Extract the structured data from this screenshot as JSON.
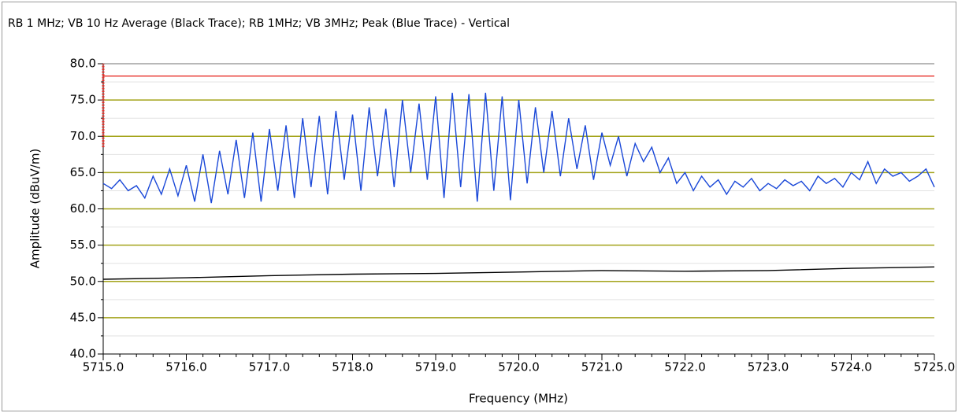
{
  "chart_data": {
    "type": "line",
    "title": "RB 1 MHz; VB 10 Hz Average (Black Trace); RB 1MHz; VB 3MHz; Peak (Blue Trace) - Vertical",
    "xlabel": "Frequency (MHz)",
    "ylabel": "Amplitude (dBuV/m)",
    "xlim": [
      5715,
      5725
    ],
    "ylim": [
      40,
      80
    ],
    "xticks": [
      {
        "value": 5715,
        "label": "5715.0"
      },
      {
        "value": 5716,
        "label": "5716.0"
      },
      {
        "value": 5717,
        "label": "5717.0"
      },
      {
        "value": 5718,
        "label": "5718.0"
      },
      {
        "value": 5719,
        "label": "5719.0"
      },
      {
        "value": 5720,
        "label": "5720.0"
      },
      {
        "value": 5721,
        "label": "5721.0"
      },
      {
        "value": 5722,
        "label": "5722.0"
      },
      {
        "value": 5723,
        "label": "5723.0"
      },
      {
        "value": 5724,
        "label": "5724.0"
      },
      {
        "value": 5725,
        "label": "5725.0"
      }
    ],
    "xminor": [
      5715.2,
      5715.4,
      5715.6,
      5715.8,
      5716.2,
      5716.4,
      5716.6,
      5716.8,
      5717.2,
      5717.4,
      5717.6,
      5717.8,
      5718.2,
      5718.4,
      5718.6,
      5718.8,
      5719.2,
      5719.4,
      5719.6,
      5719.8,
      5720.2,
      5720.4,
      5720.6,
      5720.8,
      5721.2,
      5721.4,
      5721.6,
      5721.8,
      5722.2,
      5722.4,
      5722.6,
      5722.8,
      5723.2,
      5723.4,
      5723.6,
      5723.8,
      5724.2,
      5724.4,
      5724.6,
      5724.8
    ],
    "yticks": [
      {
        "value": 40,
        "label": "40.0"
      },
      {
        "value": 45,
        "label": "45.0"
      },
      {
        "value": 50,
        "label": "50.0"
      },
      {
        "value": 55,
        "label": "55.0"
      },
      {
        "value": 60,
        "label": "60.0"
      },
      {
        "value": 65,
        "label": "65.0"
      },
      {
        "value": 70,
        "label": "70.0"
      },
      {
        "value": 75,
        "label": "75.0"
      },
      {
        "value": 80,
        "label": "80.0"
      }
    ],
    "yminor": [
      42.5,
      47.5,
      52.5,
      57.5,
      62.5,
      67.5,
      72.5,
      77.5
    ],
    "grid": true,
    "grid_color": "#a3a31a",
    "minor_grid_color": "#e2e2e2",
    "series": [
      {
        "color": "#1a48d8",
        "x": [
          5715.0,
          5715.1,
          5715.2,
          5715.3,
          5715.4,
          5715.5,
          5715.6,
          5715.7,
          5715.8,
          5715.9,
          5716.0,
          5716.1,
          5716.2,
          5716.3,
          5716.4,
          5716.5,
          5716.6,
          5716.7,
          5716.8,
          5716.9,
          5717.0,
          5717.1,
          5717.2,
          5717.3,
          5717.4,
          5717.5,
          5717.6,
          5717.7,
          5717.8,
          5717.9,
          5718.0,
          5718.1,
          5718.2,
          5718.3,
          5718.4,
          5718.5,
          5718.6,
          5718.7,
          5718.8,
          5718.9,
          5719.0,
          5719.1,
          5719.2,
          5719.3,
          5719.4,
          5719.5,
          5719.6,
          5719.7,
          5719.8,
          5719.9,
          5720.0,
          5720.1,
          5720.2,
          5720.3,
          5720.4,
          5720.5,
          5720.6,
          5720.7,
          5720.8,
          5720.9,
          5721.0,
          5721.1,
          5721.2,
          5721.3,
          5721.4,
          5721.5,
          5721.6,
          5721.7,
          5721.8,
          5721.9,
          5722.0,
          5722.1,
          5722.2,
          5722.3,
          5722.4,
          5722.5,
          5722.6,
          5722.7,
          5722.8,
          5722.9,
          5723.0,
          5723.1,
          5723.2,
          5723.3,
          5723.4,
          5723.5,
          5723.6,
          5723.7,
          5723.8,
          5723.9,
          5724.0,
          5724.1,
          5724.2,
          5724.3,
          5724.4,
          5724.5,
          5724.6,
          5724.7,
          5724.8,
          5724.9,
          5725.0
        ],
        "values": [
          63.5,
          62.8,
          64.0,
          62.5,
          63.2,
          61.5,
          64.5,
          62.0,
          65.5,
          61.8,
          66.0,
          61.0,
          67.5,
          60.8,
          68.0,
          62.0,
          69.5,
          61.5,
          70.5,
          61.0,
          71.0,
          62.5,
          71.5,
          61.5,
          72.5,
          63.0,
          72.8,
          62.0,
          73.5,
          64.0,
          73.0,
          62.5,
          74.0,
          64.5,
          73.8,
          63.0,
          75.0,
          65.0,
          74.5,
          64.0,
          75.5,
          61.5,
          76.0,
          63.0,
          75.8,
          61.0,
          76.0,
          62.5,
          75.5,
          61.2,
          75.0,
          63.5,
          74.0,
          65.0,
          73.5,
          64.5,
          72.5,
          65.5,
          71.5,
          64.0,
          70.5,
          66.0,
          70.0,
          64.5,
          69.0,
          66.5,
          68.5,
          65.0,
          67.0,
          63.5,
          65.0,
          62.5,
          64.5,
          63.0,
          64.0,
          62.0,
          63.8,
          63.0,
          64.2,
          62.5,
          63.5,
          62.8,
          64.0,
          63.2,
          63.8,
          62.5,
          64.5,
          63.5,
          64.2,
          63.0,
          65.0,
          64.0,
          66.5,
          63.5,
          65.5,
          64.5,
          65.0,
          63.8,
          64.5,
          65.5,
          63.0
        ]
      },
      {
        "color": "#000000",
        "x": [
          5715,
          5716,
          5717,
          5718,
          5719,
          5720,
          5721,
          5722,
          5723,
          5724,
          5725
        ],
        "values": [
          50.3,
          50.5,
          50.8,
          51.0,
          51.1,
          51.3,
          51.5,
          51.4,
          51.5,
          51.8,
          52.0
        ]
      },
      {
        "color": "#e8302a",
        "x": [
          5715,
          5725
        ],
        "values": [
          78.3,
          78.3
        ]
      },
      {
        "color": "#e8302a",
        "dash": true,
        "x": [
          5715,
          5715
        ],
        "values": [
          68.5,
          80
        ]
      }
    ]
  }
}
